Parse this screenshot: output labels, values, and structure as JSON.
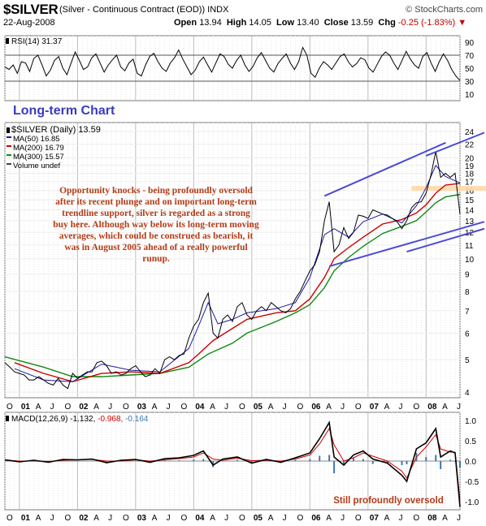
{
  "header": {
    "symbol": "$SILVER",
    "description": "(Silver - Continuous Contract (EOD))  INDX",
    "source": "© StockCharts.com",
    "date": "22-Aug-2008",
    "open_label": "Open",
    "open": "13.94",
    "high_label": "High",
    "high": "14.05",
    "low_label": "Low",
    "low": "13.40",
    "close_label": "Close",
    "close": "13.59",
    "chg_label": "Chg",
    "chg": "-0.25 (-1.83%)"
  },
  "colors": {
    "price": "#000000",
    "ma50": "#1a1aa8",
    "ma200": "#cc0000",
    "ma300": "#118811",
    "trendline": "#4b4bd6",
    "annotation": "#b23c17",
    "highlight": "#ffd8a8",
    "macd_signal": "#cc0000",
    "histogram": "#3b78b0"
  },
  "chart_data": [
    {
      "type": "line",
      "panel": "rsi",
      "legend": "RSI(14) 31.37",
      "ylim": [
        0,
        100
      ],
      "y_ticks": [
        90,
        70,
        50,
        30,
        10
      ],
      "levels": [
        30,
        70
      ],
      "values": [
        52,
        48,
        55,
        42,
        60,
        58,
        45,
        65,
        70,
        55,
        38,
        47,
        62,
        68,
        50,
        40,
        58,
        75,
        62,
        48,
        52,
        66,
        72,
        58,
        44,
        55,
        63,
        70,
        52,
        46,
        58,
        64,
        42,
        38,
        55,
        68,
        73,
        60,
        50,
        45,
        58,
        66,
        78,
        64,
        52,
        40,
        47,
        60,
        67,
        55,
        44,
        58,
        72,
        68,
        56,
        50,
        62,
        70,
        55,
        45,
        53,
        66,
        74,
        62,
        50,
        44,
        57,
        65,
        72,
        58,
        48,
        60,
        82,
        70,
        42,
        36,
        50,
        60,
        55,
        48,
        58,
        68,
        72,
        60,
        52,
        57,
        66,
        63,
        50,
        44,
        56,
        68,
        75,
        70,
        58,
        48,
        62,
        76,
        64,
        55,
        50,
        68,
        74,
        58,
        45,
        60,
        72,
        62,
        48,
        38,
        31
      ]
    },
    {
      "type": "line",
      "panel": "price",
      "title": "Long-term Chart",
      "legend": [
        {
          "name": "$SILVER (Daily) 13.59"
        },
        {
          "name": "MA(50) 16.85"
        },
        {
          "name": "MA(200) 16.79"
        },
        {
          "name": "MA(300) 15.57"
        },
        {
          "name": "Volume undef"
        }
      ],
      "scale": "log",
      "ylim": [
        3.85,
        25.5
      ],
      "y_ticks": [
        24,
        22,
        20,
        19,
        18,
        17,
        16,
        15,
        14,
        13,
        12,
        11,
        10,
        9,
        8,
        7,
        6,
        5,
        4
      ],
      "x_labels": [
        "O",
        "01",
        "A",
        "J",
        "O",
        "02",
        "A",
        "J",
        "O",
        "03",
        "A",
        "J",
        "O",
        "04",
        "A",
        "J",
        "O",
        "05",
        "A",
        "J",
        "O",
        "06",
        "A",
        "J",
        "O",
        "07",
        "A",
        "J",
        "O",
        "08",
        "A",
        "J"
      ],
      "x_range": [
        "2000-10",
        "2008-08"
      ],
      "series": [
        {
          "key": "price",
          "x": [
            "2000-10",
            "2000-11",
            "2000-12",
            "2001-01",
            "2001-02",
            "2001-03",
            "2001-04",
            "2001-05",
            "2001-06",
            "2001-07",
            "2001-08",
            "2001-09",
            "2001-10",
            "2001-11",
            "2001-12",
            "2002-01",
            "2002-02",
            "2002-03",
            "2002-04",
            "2002-05",
            "2002-06",
            "2002-07",
            "2002-08",
            "2002-09",
            "2002-10",
            "2002-11",
            "2002-12",
            "2003-01",
            "2003-02",
            "2003-03",
            "2003-04",
            "2003-05",
            "2003-06",
            "2003-07",
            "2003-08",
            "2003-09",
            "2003-10",
            "2003-11",
            "2003-12",
            "2004-01",
            "2004-02",
            "2004-03",
            "2004-04",
            "2004-05",
            "2004-06",
            "2004-07",
            "2004-08",
            "2004-09",
            "2004-10",
            "2004-11",
            "2004-12",
            "2005-01",
            "2005-02",
            "2005-03",
            "2005-04",
            "2005-05",
            "2005-06",
            "2005-07",
            "2005-08",
            "2005-09",
            "2005-10",
            "2005-11",
            "2005-12",
            "2006-01",
            "2006-02",
            "2006-03",
            "2006-04",
            "2006-05",
            "2006-06",
            "2006-07",
            "2006-08",
            "2006-09",
            "2006-10",
            "2006-11",
            "2006-12",
            "2007-01",
            "2007-02",
            "2007-03",
            "2007-04",
            "2007-05",
            "2007-06",
            "2007-07",
            "2007-08",
            "2007-09",
            "2007-10",
            "2007-11",
            "2007-12",
            "2008-01",
            "2008-02",
            "2008-03",
            "2008-04",
            "2008-05",
            "2008-06",
            "2008-07",
            "2008-08"
          ],
          "values": [
            4.9,
            4.75,
            4.6,
            4.55,
            4.5,
            4.35,
            4.35,
            4.45,
            4.35,
            4.25,
            4.2,
            4.4,
            4.2,
            4.1,
            4.55,
            4.4,
            4.5,
            4.6,
            4.6,
            4.9,
            4.95,
            4.8,
            4.55,
            4.6,
            4.5,
            4.55,
            4.7,
            4.8,
            4.6,
            4.45,
            4.5,
            4.7,
            4.55,
            5.0,
            5.1,
            5.0,
            5.15,
            5.2,
            5.8,
            6.3,
            6.6,
            7.4,
            7.9,
            6.0,
            5.8,
            6.6,
            6.8,
            6.5,
            7.2,
            7.4,
            6.8,
            6.6,
            7.0,
            7.2,
            7.0,
            7.4,
            7.2,
            7.0,
            6.9,
            7.1,
            7.6,
            8.0,
            8.6,
            9.2,
            9.6,
            10.5,
            13.0,
            14.8,
            10.5,
            11.0,
            12.4,
            11.5,
            12.0,
            13.5,
            13.4,
            13.2,
            14.0,
            13.8,
            13.6,
            13.5,
            13.2,
            12.9,
            12.3,
            13.0,
            14.2,
            14.7,
            14.8,
            15.7,
            17.8,
            20.9,
            17.5,
            18.0,
            17.5,
            18.0,
            13.59
          ]
        },
        {
          "key": "ma50",
          "x": [
            "2000-12",
            "2001-06",
            "2001-12",
            "2002-06",
            "2002-12",
            "2003-06",
            "2003-12",
            "2004-02",
            "2004-04",
            "2004-06",
            "2004-09",
            "2004-12",
            "2005-06",
            "2005-10",
            "2006-01",
            "2006-04",
            "2006-06",
            "2006-09",
            "2006-12",
            "2007-04",
            "2007-08",
            "2007-11",
            "2008-01",
            "2008-03",
            "2008-05",
            "2008-08"
          ],
          "values": [
            4.7,
            4.35,
            4.3,
            4.85,
            4.65,
            4.6,
            5.4,
            6.3,
            7.4,
            6.4,
            6.6,
            6.9,
            7.1,
            7.4,
            8.8,
            11.8,
            12.3,
            11.6,
            12.9,
            13.6,
            12.8,
            14.4,
            16.3,
            19.0,
            17.6,
            16.85
          ]
        },
        {
          "key": "ma200",
          "x": [
            "2000-12",
            "2001-06",
            "2001-12",
            "2002-06",
            "2002-12",
            "2003-06",
            "2003-12",
            "2004-02",
            "2004-05",
            "2004-09",
            "2004-12",
            "2005-06",
            "2005-10",
            "2006-01",
            "2006-04",
            "2006-06",
            "2006-09",
            "2006-12",
            "2007-04",
            "2007-08",
            "2007-11",
            "2008-01",
            "2008-03",
            "2008-05",
            "2008-08"
          ],
          "values": [
            4.9,
            4.55,
            4.3,
            4.55,
            4.6,
            4.55,
            4.9,
            5.2,
            5.7,
            6.2,
            6.6,
            6.9,
            7.0,
            7.6,
            8.8,
            10.0,
            10.8,
            11.6,
            12.7,
            13.1,
            13.7,
            14.5,
            15.7,
            16.6,
            16.79
          ]
        },
        {
          "key": "ma300",
          "x": [
            "2000-10",
            "2001-06",
            "2001-12",
            "2002-06",
            "2002-12",
            "2003-06",
            "2003-12",
            "2004-04",
            "2004-09",
            "2004-12",
            "2005-06",
            "2005-10",
            "2006-01",
            "2006-04",
            "2006-06",
            "2006-09",
            "2006-12",
            "2007-04",
            "2007-08",
            "2007-11",
            "2008-01",
            "2008-03",
            "2008-05",
            "2008-08"
          ],
          "values": [
            5.1,
            4.75,
            4.45,
            4.45,
            4.5,
            4.55,
            4.75,
            5.2,
            5.6,
            6.0,
            6.5,
            6.9,
            7.3,
            8.2,
            9.2,
            10.1,
            10.9,
            11.9,
            12.5,
            13.0,
            13.8,
            14.7,
            15.3,
            15.57
          ]
        }
      ],
      "trendlines": [
        {
          "x": [
            "2006-04",
            "2007-12"
          ],
          "y": [
            15.4,
            22.2
          ]
        },
        {
          "x": [
            "2008-01",
            "2008-08"
          ],
          "y": [
            20.3,
            23.8
          ]
        },
        {
          "x": [
            "2006-05",
            "2008-08"
          ],
          "y": [
            9.5,
            12.9
          ]
        },
        {
          "x": [
            "2007-09",
            "2008-08"
          ],
          "y": [
            10.5,
            12.3
          ]
        }
      ],
      "highlight_band": {
        "x": [
          "2007-10",
          "2008-08"
        ],
        "y": [
          15.95,
          16.5
        ]
      },
      "annotation": "Opportunity knocks - being profoundly oversold after its recent plunge and on important long-term trendline support, silver is regarded as a strong buy here. Although way below its long-term moving averages, which could be construed as bearish, it was in August 2005 ahead of a really powerful runup."
    },
    {
      "type": "line",
      "panel": "macd",
      "legend": {
        "label": "MACD(12,26,9)",
        "macd": "-1.132",
        "signal": "-0.968",
        "hist": "-0.164"
      },
      "ylim": [
        -1.2,
        1.2
      ],
      "y_ticks": [
        "1.0",
        "0.5",
        "0.0",
        "-0.5",
        "-1.0"
      ],
      "x_labels": [
        "O",
        "01",
        "A",
        "J",
        "O",
        "02",
        "A",
        "J",
        "O",
        "03",
        "A",
        "J",
        "O",
        "04",
        "A",
        "J",
        "O",
        "05",
        "A",
        "J",
        "O",
        "06",
        "A",
        "J",
        "O",
        "07",
        "A",
        "J",
        "O",
        "08",
        "A",
        "J"
      ],
      "x_range": [
        "2000-10",
        "2008-08"
      ],
      "series": [
        {
          "key": "macd",
          "x": [
            "2000-10",
            "2001-01",
            "2001-04",
            "2001-07",
            "2001-10",
            "2002-01",
            "2002-04",
            "2002-07",
            "2002-10",
            "2003-01",
            "2003-04",
            "2003-07",
            "2003-10",
            "2004-01",
            "2004-03",
            "2004-05",
            "2004-07",
            "2004-10",
            "2005-01",
            "2005-04",
            "2005-07",
            "2005-10",
            "2006-01",
            "2006-03",
            "2006-05",
            "2006-06",
            "2006-08",
            "2006-10",
            "2006-12",
            "2007-02",
            "2007-05",
            "2007-08",
            "2007-09",
            "2007-11",
            "2008-01",
            "2008-03",
            "2008-04",
            "2008-06",
            "2008-07",
            "2008-08"
          ],
          "values": [
            0.03,
            -0.02,
            0.02,
            -0.03,
            0.04,
            0.03,
            0.05,
            -0.04,
            0.02,
            0.04,
            -0.03,
            0.06,
            0.08,
            0.14,
            0.25,
            -0.1,
            0.05,
            0.1,
            -0.05,
            0.04,
            -0.03,
            0.08,
            0.2,
            0.55,
            0.95,
            0.1,
            -0.1,
            0.15,
            0.25,
            0.05,
            -0.05,
            -0.35,
            -0.5,
            0.3,
            0.45,
            0.8,
            0.1,
            0.25,
            0.2,
            -1.132
          ]
        },
        {
          "key": "signal",
          "x": [
            "2000-10",
            "2001-01",
            "2001-04",
            "2001-07",
            "2001-10",
            "2002-01",
            "2002-04",
            "2002-07",
            "2002-10",
            "2003-01",
            "2003-04",
            "2003-07",
            "2003-10",
            "2004-01",
            "2004-03",
            "2004-05",
            "2004-07",
            "2004-10",
            "2005-01",
            "2005-04",
            "2005-07",
            "2005-10",
            "2006-01",
            "2006-03",
            "2006-05",
            "2006-06",
            "2006-08",
            "2006-10",
            "2006-12",
            "2007-02",
            "2007-05",
            "2007-08",
            "2007-09",
            "2007-11",
            "2008-01",
            "2008-03",
            "2008-04",
            "2008-06",
            "2008-07",
            "2008-08"
          ],
          "values": [
            0.03,
            0.0,
            0.0,
            -0.01,
            0.02,
            0.03,
            0.04,
            0.0,
            0.0,
            0.03,
            0.0,
            0.03,
            0.06,
            0.1,
            0.2,
            0.05,
            0.02,
            0.07,
            0.01,
            0.02,
            0.0,
            0.05,
            0.15,
            0.42,
            0.8,
            0.4,
            0.0,
            0.08,
            0.2,
            0.12,
            0.0,
            -0.25,
            -0.42,
            0.1,
            0.35,
            0.65,
            0.3,
            0.22,
            0.22,
            -0.968
          ]
        }
      ],
      "annotation": "Still profoundly oversold"
    }
  ]
}
